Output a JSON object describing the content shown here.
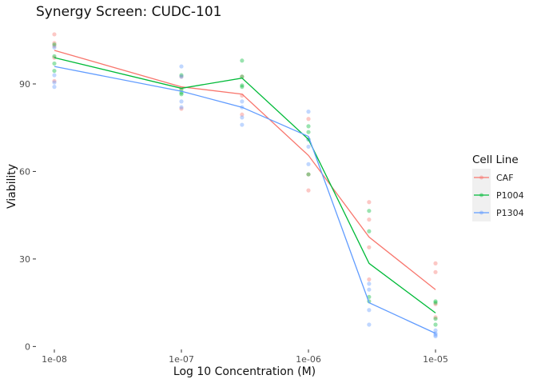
{
  "chart_data": {
    "type": "line",
    "title": "Synergy Screen: CUDC-101",
    "xlabel": "Log 10 Concentration (M)",
    "ylabel": "Viability",
    "x_scale": "log10",
    "x_ticks": [
      1e-08,
      1e-07,
      1e-06,
      1e-05
    ],
    "x_tick_labels": [
      "1e-08",
      "1e-07",
      "1e-06",
      "1e-05"
    ],
    "y_ticks": [
      0,
      30,
      60,
      90
    ],
    "y_tick_labels": [
      "0",
      "30",
      "60",
      "90"
    ],
    "ylim": [
      -1,
      110
    ],
    "grid": false,
    "legend": {
      "title": "Cell Line",
      "position": "right"
    },
    "series": [
      {
        "name": "CAF",
        "color": "#F8766D",
        "line": [
          [
            1e-08,
            101.5
          ],
          [
            1e-07,
            89
          ],
          [
            3e-07,
            86.5
          ],
          [
            1e-06,
            65.5
          ],
          [
            3e-06,
            37.5
          ],
          [
            1e-05,
            19.5
          ]
        ],
        "points": [
          [
            1e-08,
            107
          ],
          [
            1e-08,
            104
          ],
          [
            1e-08,
            103
          ],
          [
            1e-08,
            99
          ],
          [
            1e-08,
            91
          ],
          [
            1e-07,
            92.5
          ],
          [
            1e-07,
            88.5
          ],
          [
            1e-07,
            81.5
          ],
          [
            3e-07,
            92.5
          ],
          [
            3e-07,
            86
          ],
          [
            3e-07,
            79.5
          ],
          [
            1e-06,
            78
          ],
          [
            1e-06,
            59
          ],
          [
            1e-06,
            53.5
          ],
          [
            3e-06,
            49.5
          ],
          [
            3e-06,
            43.5
          ],
          [
            3e-06,
            34
          ],
          [
            3e-06,
            23
          ],
          [
            1e-05,
            28.5
          ],
          [
            1e-05,
            25.5
          ],
          [
            1e-05,
            14.5
          ],
          [
            1e-05,
            10
          ]
        ]
      },
      {
        "name": "P1004",
        "color": "#00BA38",
        "line": [
          [
            1e-08,
            99
          ],
          [
            1e-07,
            88.5
          ],
          [
            3e-07,
            92
          ],
          [
            1e-06,
            71
          ],
          [
            3e-06,
            28.5
          ],
          [
            1e-05,
            11.5
          ]
        ],
        "points": [
          [
            1e-08,
            103.5
          ],
          [
            1e-08,
            99.5
          ],
          [
            1e-08,
            97
          ],
          [
            1e-08,
            94.5
          ],
          [
            1e-07,
            93
          ],
          [
            1e-07,
            88
          ],
          [
            1e-07,
            87
          ],
          [
            1e-07,
            86.5
          ],
          [
            3e-07,
            98
          ],
          [
            3e-07,
            92.5
          ],
          [
            3e-07,
            89.5
          ],
          [
            3e-07,
            89
          ],
          [
            1e-06,
            75.5
          ],
          [
            1e-06,
            73.5
          ],
          [
            1e-06,
            71
          ],
          [
            1e-06,
            59
          ],
          [
            3e-06,
            46.5
          ],
          [
            3e-06,
            39.5
          ],
          [
            3e-06,
            17
          ],
          [
            3e-06,
            15.5
          ],
          [
            1e-05,
            15.5
          ],
          [
            1e-05,
            15
          ],
          [
            1e-05,
            9.5
          ],
          [
            1e-05,
            7.5
          ]
        ]
      },
      {
        "name": "P1304",
        "color": "#619CFF",
        "line": [
          [
            1e-08,
            96
          ],
          [
            1e-07,
            87.5
          ],
          [
            3e-07,
            82
          ],
          [
            1e-06,
            72
          ],
          [
            3e-06,
            15
          ],
          [
            1e-05,
            4.5
          ]
        ],
        "points": [
          [
            1e-08,
            102.5
          ],
          [
            1e-08,
            93
          ],
          [
            1e-08,
            90.5
          ],
          [
            1e-08,
            89
          ],
          [
            1e-07,
            96
          ],
          [
            1e-07,
            92.5
          ],
          [
            1e-07,
            84
          ],
          [
            1e-07,
            82
          ],
          [
            3e-07,
            84
          ],
          [
            3e-07,
            82
          ],
          [
            3e-07,
            78.5
          ],
          [
            3e-07,
            76
          ],
          [
            1e-06,
            80.5
          ],
          [
            1e-06,
            71
          ],
          [
            1e-06,
            68.5
          ],
          [
            1e-06,
            62.5
          ],
          [
            3e-06,
            21.5
          ],
          [
            3e-06,
            19.5
          ],
          [
            3e-06,
            12.5
          ],
          [
            3e-06,
            7.5
          ],
          [
            1e-05,
            5.5
          ],
          [
            1e-05,
            4.5
          ],
          [
            1e-05,
            4
          ],
          [
            1e-05,
            3.5
          ]
        ]
      }
    ]
  }
}
